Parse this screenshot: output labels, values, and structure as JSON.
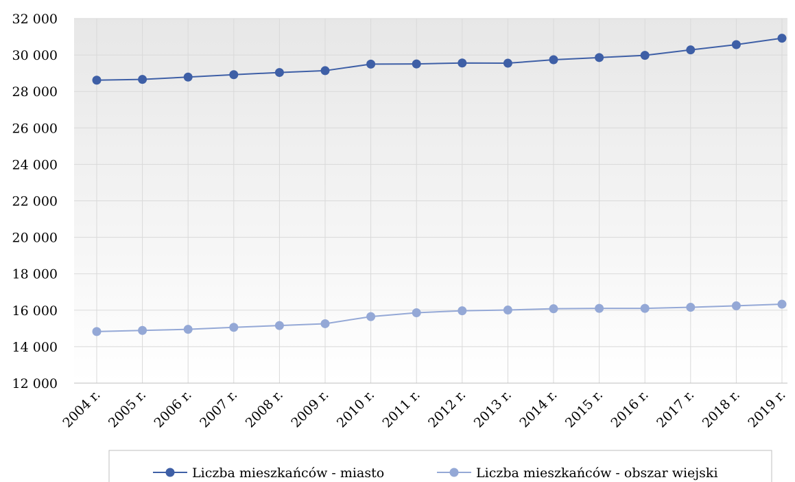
{
  "chart_data": {
    "type": "line",
    "title": "",
    "xlabel": "",
    "ylabel": "",
    "categories": [
      "2004 r.",
      "2005 r.",
      "2006 r.",
      "2007 r.",
      "2008 r.",
      "2009 r.",
      "2010 r.",
      "2011 r.",
      "2012 r.",
      "2013 r.",
      "2014 r.",
      "2015 r.",
      "2016 r.",
      "2017 r.",
      "2018 r.",
      "2019 r."
    ],
    "ylim": [
      12000,
      32000
    ],
    "yticks": [
      12000,
      14000,
      16000,
      18000,
      20000,
      22000,
      24000,
      26000,
      28000,
      30000,
      32000
    ],
    "ytick_labels": [
      "12 000",
      "14 000",
      "16 000",
      "18 000",
      "20 000",
      "22 000",
      "24 000",
      "26 000",
      "28 000",
      "30 000",
      "32 000"
    ],
    "grid": true,
    "legend_position": "bottom",
    "series": [
      {
        "name": "Liczba mieszkańców - miasto",
        "color": "#3E5FA6",
        "values": [
          28620,
          28660,
          28790,
          28920,
          29040,
          29140,
          29500,
          29510,
          29560,
          29550,
          29740,
          29860,
          29980,
          30280,
          30570,
          30920
        ]
      },
      {
        "name": "Liczba mieszkańców - obszar wiejski",
        "color": "#94A8D6",
        "values": [
          14830,
          14890,
          14950,
          15060,
          15160,
          15260,
          15650,
          15860,
          15970,
          16010,
          16080,
          16100,
          16100,
          16160,
          16240,
          16330
        ]
      }
    ]
  }
}
